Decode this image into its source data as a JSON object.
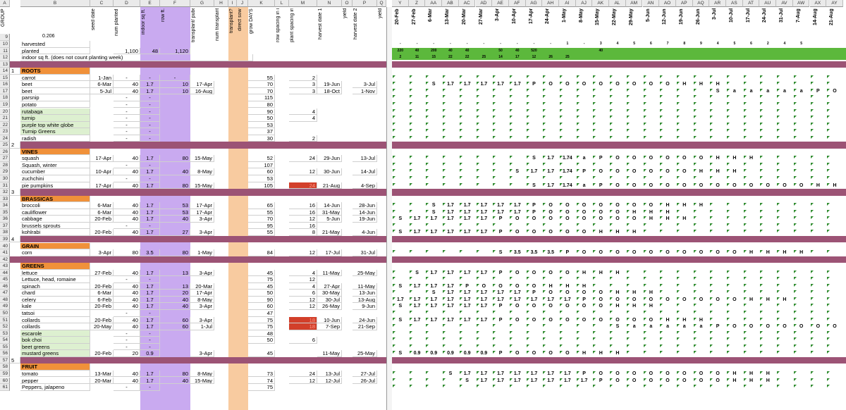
{
  "app": {
    "title": "Garden planting spreadsheet"
  },
  "columns": {
    "letters": [
      "A",
      "B",
      "C",
      "D",
      "E",
      "F",
      "G",
      "H",
      "I",
      "J",
      "K",
      "L",
      "M",
      "N",
      "O",
      "P",
      "Q",
      "Y",
      "Z",
      "AA",
      "AB",
      "AC",
      "AD",
      "AE",
      "AF",
      "AG",
      "AH",
      "AI",
      "AJ",
      "AK",
      "AL",
      "AM",
      "AN",
      "AO",
      "AP",
      "AQ",
      "AR",
      "AS",
      "AT",
      "AU",
      "AV",
      "AW",
      "AX",
      "AY"
    ],
    "headers": {
      "group": "GROUP",
      "b_value": "0.206",
      "seed_date": "seed date",
      "num_planted": "num planted",
      "indoor_sq_ft": "indoor sq ft.",
      "row_ft": "row ft.",
      "transplant_puberty": "transplant/ puberty date",
      "num_transplant": "num transplant",
      "transplant_q": "transplant?",
      "direct_sow": "direct sow",
      "grow_days": "grow DAYS",
      "row_spacing": "row spacing in inches",
      "plant_spacing": "plant spacing in inches",
      "harvest_date_1": "harvest date 1",
      "yield1": "yield",
      "harvest_date_2": "harvest date 2",
      "yield2": "yield"
    },
    "weeks": [
      "20-Feb",
      "27-Feb",
      "6-Mar",
      "13-Mar",
      "20-Mar",
      "27-Mar",
      "3-Apr",
      "10-Apr",
      "17-Apr",
      "24-Apr",
      "1-May",
      "8-May",
      "15-May",
      "22-May",
      "29-May",
      "5-Jun",
      "12-Jun",
      "19-Jun",
      "26-Jun",
      "3-Jul",
      "10-Jul",
      "17-Jul",
      "24-Jul",
      "31-Jul",
      "7-Aug",
      "14-Aug",
      "21-Aug"
    ]
  },
  "summary": {
    "harvested_label": "harvested",
    "planted_label": "planted",
    "planted_num": "1,100",
    "planted_sq": "48",
    "planted_row": "1,120",
    "indoor_label": "indoor sq ft. (does not count planting week)",
    "row10_vals": [
      "-",
      "-",
      "-",
      "-",
      "-",
      "-",
      "-",
      "-",
      "-",
      "-",
      "1",
      "-",
      "3",
      "4",
      "5",
      "6",
      "7",
      "8",
      "9",
      "4",
      "5",
      "6",
      "2",
      "4",
      "5"
    ],
    "row11_vals": [
      "220",
      "40",
      "200",
      "40",
      "40",
      "",
      "50",
      "40",
      "520",
      "",
      "",
      "",
      "40",
      "",
      "",
      "",
      "",
      "",
      "",
      "",
      "",
      "",
      "",
      "",
      "",
      ""
    ],
    "row12_vals": [
      "2",
      "11",
      "15",
      "22",
      "22",
      "25",
      "14",
      "17",
      "12",
      "26",
      "25",
      "",
      "",
      "",
      "",
      "",
      "",
      "",
      "",
      "",
      "",
      "",
      "",
      "",
      "",
      ""
    ]
  },
  "rows": [
    {
      "n": "13",
      "type": "band"
    },
    {
      "n": "14",
      "type": "cat",
      "label": "ROOTS",
      "group": "1"
    },
    {
      "n": "15",
      "name": "carrot",
      "seed": "1-Jan",
      "num": "-",
      "sq": "-",
      "row": "-",
      "grow": "55",
      "plant": "2"
    },
    {
      "n": "16",
      "name": "beet",
      "seed": "6-Mar",
      "num": "40",
      "sq": "1.7",
      "row": "10",
      "trans": "17-Apr",
      "grow": "70",
      "plant": "3",
      "h1": "19-Jun",
      "h2": "3-Jul",
      "weeks": {
        "2": "S",
        "3": "1.7",
        "4": "1.7",
        "5": "1.7",
        "6": "1.7",
        "7": "1.7",
        "8": "P",
        "9": "O",
        "10": "O",
        "11": "O",
        "12": "O",
        "13": "O",
        "14": "O",
        "15": "O",
        "16": "O",
        "17": "H",
        "18": "H",
        "19": "H"
      }
    },
    {
      "n": "17",
      "name": "beet",
      "seed": "5-Jul",
      "num": "40",
      "sq": "1.7",
      "row": "10",
      "trans": "16-Aug",
      "grow": "70",
      "plant": "3",
      "h1": "18-Oct",
      "h2": "1-Nov",
      "weeks": {
        "19": "S",
        "20": "a",
        "21": "a",
        "22": "a",
        "23": "a",
        "24": "a",
        "25": "P",
        "26": "O"
      }
    },
    {
      "n": "18",
      "name": "parsnip",
      "num": "-",
      "sq": "-",
      "grow": "115"
    },
    {
      "n": "19",
      "name": "potato",
      "num": "-",
      "sq": "-",
      "grow": "80"
    },
    {
      "n": "20",
      "name": "rutabaga",
      "num": "-",
      "sq": "-",
      "grow": "90",
      "plant": "4",
      "green": true
    },
    {
      "n": "21",
      "name": "turnip",
      "num": "-",
      "sq": "-",
      "grow": "50",
      "plant": "4",
      "green": true
    },
    {
      "n": "22",
      "name": "purple top white globe",
      "num": "-",
      "sq": "-",
      "grow": "53",
      "green": true
    },
    {
      "n": "23",
      "name": "Turnip Greens",
      "num": "-",
      "sq": "-",
      "grow": "37",
      "green": true
    },
    {
      "n": "24",
      "name": "radish",
      "num": "-",
      "sq": "-",
      "grow": "30",
      "plant": "2"
    },
    {
      "n": "25",
      "type": "band",
      "group": "2"
    },
    {
      "n": "26",
      "type": "cat",
      "label": "VINES"
    },
    {
      "n": "27",
      "name": "squash",
      "seed": "17-Apr",
      "num": "40",
      "sq": "1.7",
      "row": "80",
      "trans": "15-May",
      "grow": "52",
      "plant": "24",
      "h1": "29-Jun",
      "h2": "13-Jul",
      "weeks": {
        "8": "S",
        "9": "1.7",
        "10": "1.74",
        "11": "a",
        "12": "P",
        "13": "O",
        "14": "O",
        "15": "O",
        "16": "O",
        "17": "O",
        "18": "O",
        "19": "H",
        "20": "H",
        "21": "H"
      }
    },
    {
      "n": "28",
      "name": "Squash, winter",
      "num": "-",
      "sq": "-",
      "grow": "107"
    },
    {
      "n": "29",
      "name": "cucumber",
      "seed": "10-Apr",
      "num": "40",
      "sq": "1.7",
      "row": "40",
      "trans": "8-May",
      "grow": "60",
      "plant": "12",
      "h1": "30-Jun",
      "h2": "14-Jul",
      "weeks": {
        "7": "S",
        "8": "1.7",
        "9": "1.7",
        "10": "1.74",
        "11": "P",
        "12": "O",
        "13": "O",
        "14": "O",
        "15": "O",
        "16": "O",
        "17": "O",
        "18": "H",
        "19": "H",
        "20": "H"
      }
    },
    {
      "n": "30",
      "name": "zuchchini",
      "num": "-",
      "sq": "-",
      "grow": "53"
    },
    {
      "n": "31",
      "name": "pie pumpkins",
      "seed": "17-Apr",
      "num": "40",
      "sq": "1.7",
      "row": "80",
      "trans": "15-May",
      "grow": "105",
      "plant": "24",
      "red": true,
      "h1": "21-Aug",
      "h2": "4-Sep",
      "weeks": {
        "8": "S",
        "9": "1.7",
        "10": "1.74",
        "11": "a",
        "12": "P",
        "13": "O",
        "14": "O",
        "15": "O",
        "16": "O",
        "17": "O",
        "18": "O",
        "19": "O",
        "20": "O",
        "21": "O",
        "22": "O",
        "23": "O",
        "24": "O",
        "25": "H",
        "26": "H"
      }
    },
    {
      "n": "32",
      "type": "band",
      "group": "3"
    },
    {
      "n": "33",
      "type": "cat",
      "label": "BRASSICAS"
    },
    {
      "n": "34",
      "name": "broccoli",
      "seed": "6-Mar",
      "num": "40",
      "sq": "1.7",
      "row": "53",
      "trans": "17-Apr",
      "grow": "65",
      "plant": "16",
      "h1": "14-Jun",
      "h2": "28-Jun",
      "weeks": {
        "2": "S",
        "3": "1.7",
        "4": "1.7",
        "5": "1.7",
        "6": "1.7",
        "7": "1.7",
        "8": "P",
        "9": "O",
        "10": "O",
        "11": "O",
        "12": "O",
        "13": "O",
        "14": "O",
        "15": "O",
        "16": "H",
        "17": "H",
        "18": "H"
      }
    },
    {
      "n": "35",
      "name": "cauliflower",
      "seed": "6-Mar",
      "num": "40",
      "sq": "1.7",
      "row": "53",
      "trans": "17-Apr",
      "grow": "55",
      "plant": "16",
      "h1": "31-May",
      "h2": "14-Jun",
      "weeks": {
        "2": "S",
        "3": "1.7",
        "4": "1.7",
        "5": "1.7",
        "6": "1.7",
        "7": "1.7",
        "8": "P",
        "9": "O",
        "10": "O",
        "11": "O",
        "12": "O",
        "13": "O",
        "14": "H",
        "15": "H",
        "16": "H"
      }
    },
    {
      "n": "36",
      "name": "cabbage",
      "seed": "20-Feb",
      "num": "40",
      "sq": "1.7",
      "row": "40",
      "trans": "3-Apr",
      "grow": "70",
      "plant": "12",
      "h1": "5-Jun",
      "h2": "19-Jun",
      "weeks": {
        "0": "S",
        "1": "1.7",
        "2": "1.7",
        "3": "1.7",
        "4": "1.7",
        "5": "1.7",
        "6": "P",
        "7": "O",
        "8": "O",
        "9": "O",
        "10": "O",
        "11": "O",
        "12": "O",
        "13": "O",
        "14": "O",
        "15": "H",
        "16": "H",
        "17": "H"
      }
    },
    {
      "n": "37",
      "name": "brussels sprouts",
      "num": "-",
      "sq": "-",
      "grow": "95",
      "plant": "16"
    },
    {
      "n": "38",
      "name": "kohlrabi",
      "seed": "20-Feb",
      "num": "40",
      "sq": "1.7",
      "row": "27",
      "trans": "3-Apr",
      "grow": "55",
      "plant": "8",
      "h1": "21-May",
      "h2": "4-Jun",
      "weeks": {
        "0": "S",
        "1": "1.7",
        "2": "1.7",
        "3": "1.7",
        "4": "1.7",
        "5": "1.7",
        "6": "P",
        "7": "O",
        "8": "O",
        "9": "O",
        "10": "O",
        "11": "O",
        "12": "H",
        "13": "H",
        "14": "H"
      }
    },
    {
      "n": "39",
      "type": "band",
      "group": "4"
    },
    {
      "n": "40",
      "type": "cat",
      "label": "GRAIN"
    },
    {
      "n": "41",
      "name": "corn",
      "seed": "3-Apr",
      "num": "80",
      "sq": "3.5",
      "row": "80",
      "trans": "1-May",
      "grow": "84",
      "plant": "12",
      "h1": "17-Jul",
      "h2": "31-Jul",
      "weeks": {
        "6": "S",
        "7": "3.5",
        "8": "3.5",
        "9": "3.5",
        "10": "P",
        "11": "O",
        "12": "O",
        "13": "O",
        "14": "O",
        "15": "O",
        "16": "O",
        "17": "O",
        "18": "O",
        "19": "O",
        "20": "O",
        "21": "H",
        "22": "H",
        "23": "H",
        "24": "H"
      }
    },
    {
      "n": "42",
      "type": "band"
    },
    {
      "n": "43",
      "type": "cat",
      "label": "GREENS"
    },
    {
      "n": "44",
      "name": "lettuce",
      "seed": "27-Feb",
      "num": "40",
      "sq": "1.7",
      "row": "13",
      "trans": "3-Apr",
      "grow": "45",
      "plant": "4",
      "h1": "11-May",
      "h2": "25-May",
      "weeks": {
        "1": "S",
        "2": "1.7",
        "3": "1.7",
        "4": "1.7",
        "5": "1.7",
        "6": "P",
        "7": "O",
        "8": "O",
        "9": "O",
        "10": "O",
        "11": "H",
        "12": "H",
        "13": "H"
      }
    },
    {
      "n": "45",
      "name": "Lettuce, head, romaine",
      "num": "-",
      "sq": "-",
      "grow": "75",
      "plant": "12"
    },
    {
      "n": "46",
      "name": "spinach",
      "seed": "20-Feb",
      "num": "40",
      "sq": "1.7",
      "row": "13",
      "trans": "20-Mar",
      "grow": "45",
      "plant": "4",
      "h1": "27-Apr",
      "h2": "11-May",
      "weeks": {
        "0": "S",
        "1": "1.7",
        "2": "1.7",
        "3": "1.7",
        "4": "P",
        "5": "O",
        "6": "O",
        "7": "O",
        "8": "O",
        "9": "H",
        "10": "H",
        "11": "H"
      }
    },
    {
      "n": "47",
      "name": "chard",
      "seed": "6-Mar",
      "num": "40",
      "sq": "1.7",
      "row": "20",
      "trans": "17-Apr",
      "grow": "50",
      "plant": "6",
      "h1": "30-May",
      "h2": "13-Jun",
      "weeks": {
        "2": "S",
        "3": "1.7",
        "4": "1.7",
        "5": "1.7",
        "6": "1.7",
        "7": "1.7",
        "8": "P",
        "9": "O",
        "10": "O",
        "11": "O",
        "12": "O",
        "13": "H",
        "14": "H",
        "15": "H"
      }
    },
    {
      "n": "48",
      "name": "celery",
      "seed": "6-Feb",
      "num": "40",
      "sq": "1.7",
      "row": "40",
      "trans": "8-May",
      "grow": "90",
      "plant": "12",
      "h1": "30-Jul",
      "h2": "13-Aug",
      "weeks": {
        "0": "1.7",
        "1": "1.7",
        "2": "1.7",
        "3": "1.7",
        "4": "1.7",
        "5": "1.7",
        "6": "1.7",
        "7": "1.7",
        "8": "1.7",
        "9": "1.7",
        "10": "1.7",
        "11": "P",
        "12": "O",
        "13": "O",
        "14": "O",
        "15": "O",
        "16": "O",
        "17": "O",
        "18": "O",
        "19": "O",
        "20": "O",
        "21": "H",
        "22": "H",
        "23": "H"
      }
    },
    {
      "n": "49",
      "name": "kale",
      "seed": "20-Feb",
      "num": "40",
      "sq": "1.7",
      "row": "40",
      "trans": "3-Apr",
      "grow": "60",
      "plant": "12",
      "h1": "26-May",
      "h2": "9-Jun",
      "weeks": {
        "0": "S",
        "1": "1.7",
        "2": "1.7",
        "3": "1.7",
        "4": "1.7",
        "5": "1.7",
        "6": "P",
        "7": "O",
        "8": "O",
        "9": "O",
        "10": "O",
        "11": "O",
        "12": "O",
        "13": "H",
        "14": "H",
        "15": "H"
      }
    },
    {
      "n": "50",
      "name": "tatsoi",
      "num": "-",
      "sq": "-",
      "grow": "47"
    },
    {
      "n": "51",
      "name": "collards",
      "seed": "20-Feb",
      "num": "40",
      "sq": "1.7",
      "row": "60",
      "trans": "3-Apr",
      "grow": "75",
      "plant": "18",
      "red": true,
      "h1": "10-Jun",
      "h2": "24-Jun",
      "weeks": {
        "0": "S",
        "1": "1.7",
        "2": "1.7",
        "3": "1.7",
        "4": "1.7",
        "5": "1.7",
        "6": "P",
        "7": "O",
        "8": "O",
        "9": "O",
        "10": "O",
        "11": "O",
        "12": "O",
        "13": "O",
        "14": "O",
        "15": "O",
        "16": "H",
        "17": "H",
        "18": "H"
      }
    },
    {
      "n": "52",
      "name": "collards",
      "seed": "20-May",
      "num": "40",
      "sq": "1.7",
      "row": "60",
      "trans": "1-Jul",
      "grow": "75",
      "plant": "18",
      "red": true,
      "h1": "7-Sep",
      "h2": "21-Sep",
      "weeks": {
        "13": "S",
        "14": "a",
        "15": "a",
        "16": "a",
        "17": "a",
        "18": "a",
        "19": "P",
        "20": "O",
        "21": "O",
        "22": "O",
        "23": "O",
        "24": "O",
        "25": "O",
        "26": "O"
      }
    },
    {
      "n": "53",
      "name": "escarole",
      "num": "-",
      "sq": "-",
      "grow": "48",
      "green": true
    },
    {
      "n": "54",
      "name": "bok choi",
      "num": "-",
      "sq": "-",
      "grow": "50",
      "plant": "6",
      "green": true
    },
    {
      "n": "55",
      "name": "beet greens",
      "num": "-",
      "sq": "-",
      "green": true
    },
    {
      "n": "56",
      "name": "mustard greens",
      "seed": "20-Feb",
      "num": "20",
      "sq": "0.9",
      "trans": "3-Apr",
      "grow": "45",
      "h1": "11-May",
      "h2": "25-May",
      "green": true,
      "weeks": {
        "0": "S",
        "1": "0.9",
        "2": "0.9",
        "3": "0.9",
        "4": "0.9",
        "5": "0.9",
        "6": "P",
        "7": "O",
        "8": "O",
        "9": "O",
        "10": "O",
        "11": "H",
        "12": "H",
        "13": "H"
      }
    },
    {
      "n": "57",
      "type": "band",
      "group": "5"
    },
    {
      "n": "58",
      "type": "cat",
      "label": "FRUIT"
    },
    {
      "n": "59",
      "name": "tomato",
      "seed": "13-Mar",
      "num": "40",
      "sq": "1.7",
      "row": "80",
      "trans": "8-May",
      "grow": "73",
      "plant": "24",
      "h1": "13-Jul",
      "h2": "27-Jul",
      "weeks": {
        "3": "S",
        "4": "1.7",
        "5": "1.7",
        "6": "1.7",
        "7": "1.7",
        "8": "1.7",
        "9": "1.7",
        "10": "1.7",
        "11": "P",
        "12": "O",
        "13": "O",
        "14": "O",
        "15": "O",
        "16": "O",
        "17": "O",
        "18": "O",
        "19": "O",
        "20": "H",
        "21": "H",
        "22": "H"
      }
    },
    {
      "n": "60",
      "name": "pepper",
      "seed": "20-Mar",
      "num": "40",
      "sq": "1.7",
      "row": "40",
      "trans": "15-May",
      "grow": "74",
      "plant": "12",
      "h1": "12-Jul",
      "h2": "26-Jul",
      "weeks": {
        "4": "S",
        "5": "1.7",
        "6": "1.7",
        "7": "1.7",
        "8": "1.7",
        "9": "1.7",
        "10": "1.7",
        "11": "1.7",
        "12": "P",
        "13": "O",
        "14": "O",
        "15": "O",
        "16": "O",
        "17": "O",
        "18": "O",
        "19": "O",
        "20": "H",
        "21": "H",
        "22": "H"
      }
    },
    {
      "n": "61",
      "name": "Peppers, jalapeno",
      "num": "-",
      "sq": "-",
      "grow": "75"
    }
  ],
  "colors": {
    "band": "#9c5375",
    "category": "#f0913a",
    "indoor": "#c9aaf0",
    "direct_sow": "#f8cba0",
    "warn": "#d23f2a",
    "green_bar": "#5cb83c",
    "triangle": "#2e8b2e"
  }
}
